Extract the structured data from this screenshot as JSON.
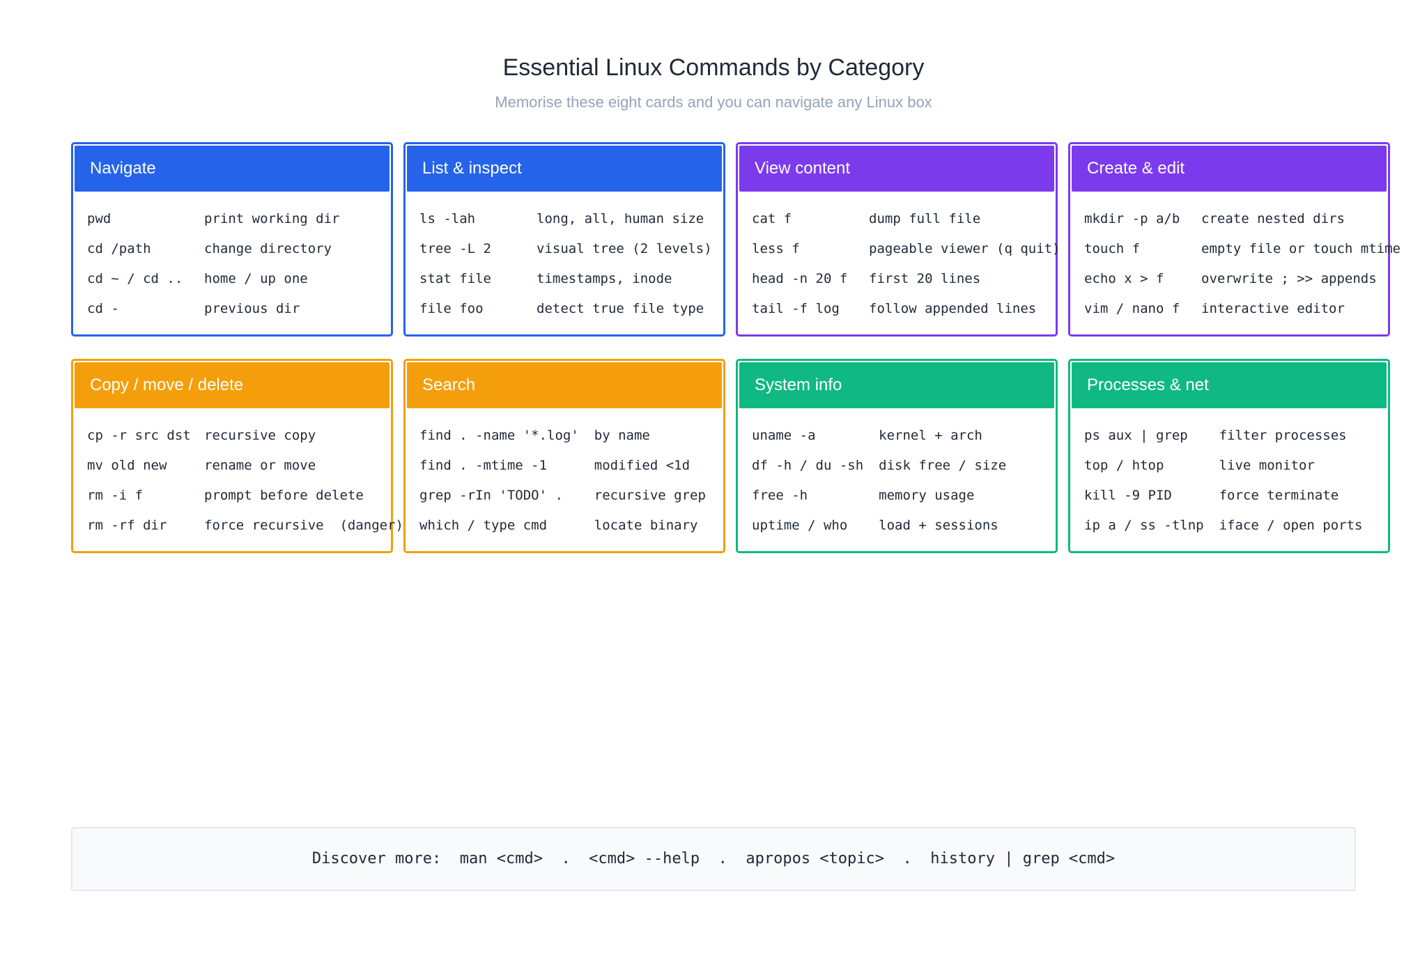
{
  "header": {
    "title": "Essential Linux Commands by Category",
    "subtitle": "Memorise these eight cards and you can navigate any Linux box"
  },
  "cards": [
    {
      "title": "Navigate",
      "color": "#2563eb",
      "rows": [
        [
          "pwd",
          "print working dir"
        ],
        [
          "cd /path",
          "change directory"
        ],
        [
          "cd ~ / cd ..",
          "home / up one"
        ],
        [
          "cd -",
          "previous dir"
        ]
      ]
    },
    {
      "title": "List & inspect",
      "color": "#2563eb",
      "rows": [
        [
          "ls -lah",
          "long, all, human size"
        ],
        [
          "tree -L 2",
          "visual tree (2 levels)"
        ],
        [
          "stat file",
          "timestamps, inode"
        ],
        [
          "file foo",
          "detect true file type"
        ]
      ]
    },
    {
      "title": "View content",
      "color": "#7c3aed",
      "rows": [
        [
          "cat f",
          "dump full file"
        ],
        [
          "less f",
          "pageable viewer (q quit)"
        ],
        [
          "head -n 20 f",
          "first 20 lines"
        ],
        [
          "tail -f log",
          "follow appended lines"
        ]
      ]
    },
    {
      "title": "Create & edit",
      "color": "#7c3aed",
      "rows": [
        [
          "mkdir -p a/b",
          "create nested dirs"
        ],
        [
          "touch f",
          "empty file or touch mtime"
        ],
        [
          "echo x > f",
          "overwrite ; >> appends"
        ],
        [
          "vim / nano f",
          "interactive editor"
        ]
      ]
    },
    {
      "title": "Copy / move / delete",
      "color": "#f59e0b",
      "rows": [
        [
          "cp -r src dst",
          "recursive copy"
        ],
        [
          "mv old new",
          "rename or move"
        ],
        [
          "rm -i f",
          "prompt before delete"
        ],
        [
          "rm -rf dir",
          "force recursive  (danger)"
        ]
      ]
    },
    {
      "title": "Search",
      "color": "#f59e0b",
      "rows": [
        [
          "find . -name '*.log'",
          "by name"
        ],
        [
          "find . -mtime -1",
          "modified <1d"
        ],
        [
          "grep -rIn 'TODO' .",
          "recursive grep"
        ],
        [
          "which / type cmd",
          "locate binary"
        ]
      ]
    },
    {
      "title": "System info",
      "color": "#10b981",
      "rows": [
        [
          "uname -a",
          "kernel + arch"
        ],
        [
          "df -h / du -sh",
          "disk free / size"
        ],
        [
          "free -h",
          "memory usage"
        ],
        [
          "uptime / who",
          "load + sessions"
        ]
      ]
    },
    {
      "title": "Processes & net",
      "color": "#10b981",
      "rows": [
        [
          "ps aux | grep",
          "filter processes"
        ],
        [
          "top / htop",
          "live monitor"
        ],
        [
          "kill -9 PID",
          "force terminate"
        ],
        [
          "ip a / ss -tlnp",
          "iface / open ports"
        ]
      ]
    }
  ],
  "footer": {
    "text": "Discover more:  man <cmd>  .  <cmd> --help  .  apropos <topic>  .  history | grep <cmd>"
  }
}
